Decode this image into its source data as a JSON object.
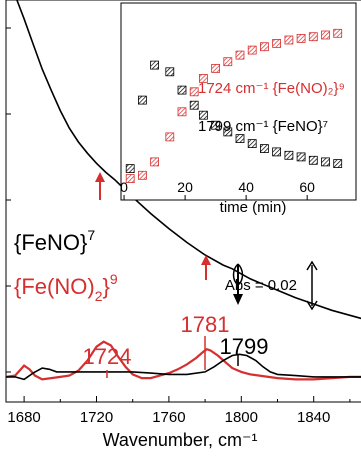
{
  "chart_data": [
    {
      "type": "line",
      "xlabel": "Wavenumber, cm⁻¹",
      "ylabel": "",
      "xlim": [
        1670,
        1870
      ],
      "ylim": [
        -0.02,
        0.3
      ],
      "x_ticks": [
        1680,
        1720,
        1760,
        1800,
        1840
      ],
      "grid": false,
      "scale_bar": {
        "label": "Abs = 0.02",
        "value": 0.02
      },
      "labels": {
        "feno": "{FeNO}",
        "feno_sup": "7",
        "fe_no2_prefix": "{Fe(NO)",
        "fe_no2_sub": "2",
        "fe_no2_suffix": "}",
        "fe_no2_sup": "9"
      },
      "peak_labels": [
        {
          "text": "1724",
          "x": 1724,
          "color": "#d62f2f"
        },
        {
          "text": "1781",
          "x": 1781,
          "color": "#d62f2f"
        },
        {
          "text": "1799",
          "x": 1799,
          "color": "#000000"
        }
      ],
      "series": [
        {
          "color": "#d62f2f",
          "x": [
            1670,
            1675,
            1680,
            1683,
            1686,
            1690,
            1695,
            1700,
            1705,
            1710,
            1715,
            1720,
            1724,
            1728,
            1732,
            1736,
            1740,
            1745,
            1750,
            1755,
            1760,
            1765,
            1770,
            1775,
            1779,
            1781,
            1783,
            1787,
            1791,
            1795,
            1800,
            1805,
            1810,
            1815,
            1820,
            1830,
            1840,
            1850,
            1860,
            1870
          ],
          "y": [
            0.0,
            0.001,
            0.009,
            0.006,
            0.001,
            -0.002,
            -0.001,
            0.0,
            0.001,
            0.005,
            0.013,
            0.024,
            0.028,
            0.025,
            0.016,
            0.008,
            0.002,
            -0.001,
            -0.001,
            0.001,
            0.003,
            0.006,
            0.01,
            0.015,
            0.02,
            0.022,
            0.021,
            0.017,
            0.012,
            0.007,
            0.004,
            0.002,
            0.001,
            0.0,
            -0.001,
            -0.002,
            -0.002,
            -0.001,
            0.0,
            0.0
          ]
        },
        {
          "color": "#000000",
          "x": [
            1670,
            1675,
            1680,
            1685,
            1690,
            1694,
            1698,
            1705,
            1710,
            1720,
            1730,
            1740,
            1750,
            1760,
            1770,
            1780,
            1785,
            1790,
            1795,
            1799,
            1803,
            1808,
            1812,
            1816,
            1820,
            1830,
            1840,
            1850,
            1860,
            1870
          ],
          "y": [
            0.0,
            0.0,
            -0.002,
            0.003,
            0.007,
            0.006,
            0.004,
            0.004,
            0.004,
            0.004,
            0.004,
            0.004,
            0.003,
            0.002,
            0.002,
            0.004,
            0.008,
            0.013,
            0.017,
            0.018,
            0.017,
            0.013,
            0.008,
            0.004,
            0.002,
            0.001,
            0.0,
            0.0,
            0.0,
            0.0
          ]
        },
        {
          "color": "#000000",
          "x": [
            1676,
            1680,
            1685,
            1690,
            1695,
            1700,
            1705,
            1710,
            1715,
            1720,
            1725,
            1730,
            1740,
            1750,
            1760,
            1770,
            1780,
            1790,
            1795,
            1800,
            1805,
            1810,
            1820,
            1830,
            1840,
            1850,
            1860,
            1870
          ],
          "y": [
            0.3,
            0.285,
            0.265,
            0.245,
            0.228,
            0.212,
            0.198,
            0.187,
            0.178,
            0.17,
            0.163,
            0.157,
            0.143,
            0.13,
            0.118,
            0.107,
            0.097,
            0.089,
            0.086,
            0.082,
            0.078,
            0.075,
            0.069,
            0.063,
            0.058,
            0.053,
            0.049,
            0.045
          ]
        }
      ]
    },
    {
      "type": "scatter",
      "xlabel": "time (min)",
      "ylabel": "",
      "xlim": [
        -1,
        76
      ],
      "ylim": [
        0,
        1
      ],
      "x_ticks": [
        0,
        20,
        40,
        60
      ],
      "grid": false,
      "series": [
        {
          "name": "1724 cm⁻¹ {Fe(NO)₂}⁹",
          "color": "#d62f2f",
          "x": [
            2,
            6,
            10,
            15,
            19,
            23,
            26,
            30,
            34,
            38,
            42,
            46,
            50,
            54,
            58,
            62,
            66,
            70
          ],
          "y": [
            0.08,
            0.1,
            0.18,
            0.33,
            0.48,
            0.6,
            0.68,
            0.74,
            0.78,
            0.82,
            0.85,
            0.87,
            0.89,
            0.91,
            0.92,
            0.93,
            0.94,
            0.95
          ]
        },
        {
          "name": "1799 cm⁻¹ {FeNO}⁷",
          "color": "#000000",
          "x": [
            2,
            6,
            10,
            15,
            19,
            23,
            26,
            30,
            34,
            38,
            42,
            46,
            50,
            54,
            58,
            62,
            66,
            70
          ],
          "y": [
            0.14,
            0.55,
            0.76,
            0.72,
            0.61,
            0.52,
            0.46,
            0.4,
            0.36,
            0.32,
            0.29,
            0.26,
            0.24,
            0.22,
            0.21,
            0.19,
            0.18,
            0.17
          ]
        }
      ]
    }
  ]
}
